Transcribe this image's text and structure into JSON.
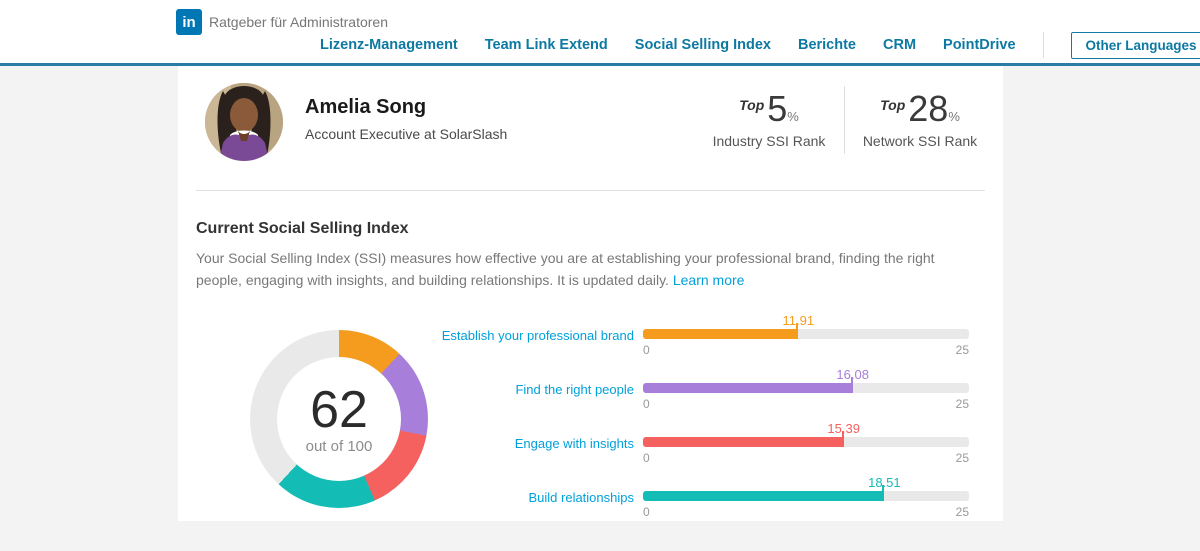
{
  "header": {
    "logo_text": "in",
    "brand": "Ratgeber für Administratoren",
    "nav": [
      {
        "id": "lizenz-management",
        "label": "Lizenz-Management"
      },
      {
        "id": "team-link-extend",
        "label": "Team Link Extend"
      },
      {
        "id": "social-selling-index",
        "label": "Social Selling Index"
      },
      {
        "id": "berichte",
        "label": "Berichte"
      },
      {
        "id": "crm",
        "label": "CRM"
      },
      {
        "id": "pointdrive",
        "label": "PointDrive"
      }
    ],
    "other_languages_label": "Other Languages"
  },
  "profile": {
    "name": "Amelia Song",
    "headline": "Account Executive at SolarSlash",
    "ranks": [
      {
        "prefix": "Top",
        "value": "5",
        "unit": "%",
        "label": "Industry SSI Rank"
      },
      {
        "prefix": "Top",
        "value": "28",
        "unit": "%",
        "label": "Network SSI Rank"
      }
    ]
  },
  "section": {
    "title": "Current Social Selling Index",
    "description": "Your Social Selling Index (SSI) measures how effective you are at establishing your professional brand, finding the right people, engaging with insights, and building relationships. It is updated daily.",
    "learn_more_label": "Learn more"
  },
  "colors": {
    "header_accent": "#2b7ca5",
    "nav_link": "#0d79a3",
    "logo_blue": "#0077b5",
    "body_link": "#00a0dc",
    "track_gray": "#e9e9e9"
  },
  "chart_data": [
    {
      "type": "donut",
      "center_value": "62",
      "center_sublabel": "out of 100",
      "total": 100,
      "remainder_value": 38,
      "remainder_color": "#e9e9e9",
      "segments": [
        {
          "label": "Establish your professional brand",
          "value": 11.91,
          "color": "#f59b1e"
        },
        {
          "label": "Find the right people",
          "value": 16.08,
          "color": "#a87edb"
        },
        {
          "label": "Engage with insights",
          "value": 15.39,
          "color": "#f4615e"
        },
        {
          "label": "Build relationships",
          "value": 18.51,
          "color": "#13bcb4"
        }
      ]
    },
    {
      "type": "bar",
      "xlim": [
        0,
        25
      ],
      "axis_min_label": "0",
      "axis_max_label": "25",
      "bars": [
        {
          "id": "establish-your-professional-brand",
          "label": "Establish your professional brand",
          "value": 11.91,
          "display": "11.91",
          "color": "#f59b1e"
        },
        {
          "id": "find-the-right-people",
          "label": "Find the right people",
          "value": 16.08,
          "display": "16.08",
          "color": "#a87edb"
        },
        {
          "id": "engage-with-insights",
          "label": "Engage with insights",
          "value": 15.39,
          "display": "15.39",
          "color": "#f4615e"
        },
        {
          "id": "build-relationships",
          "label": "Build relationships",
          "value": 18.51,
          "display": "18.51",
          "color": "#13bcb4"
        }
      ]
    }
  ]
}
